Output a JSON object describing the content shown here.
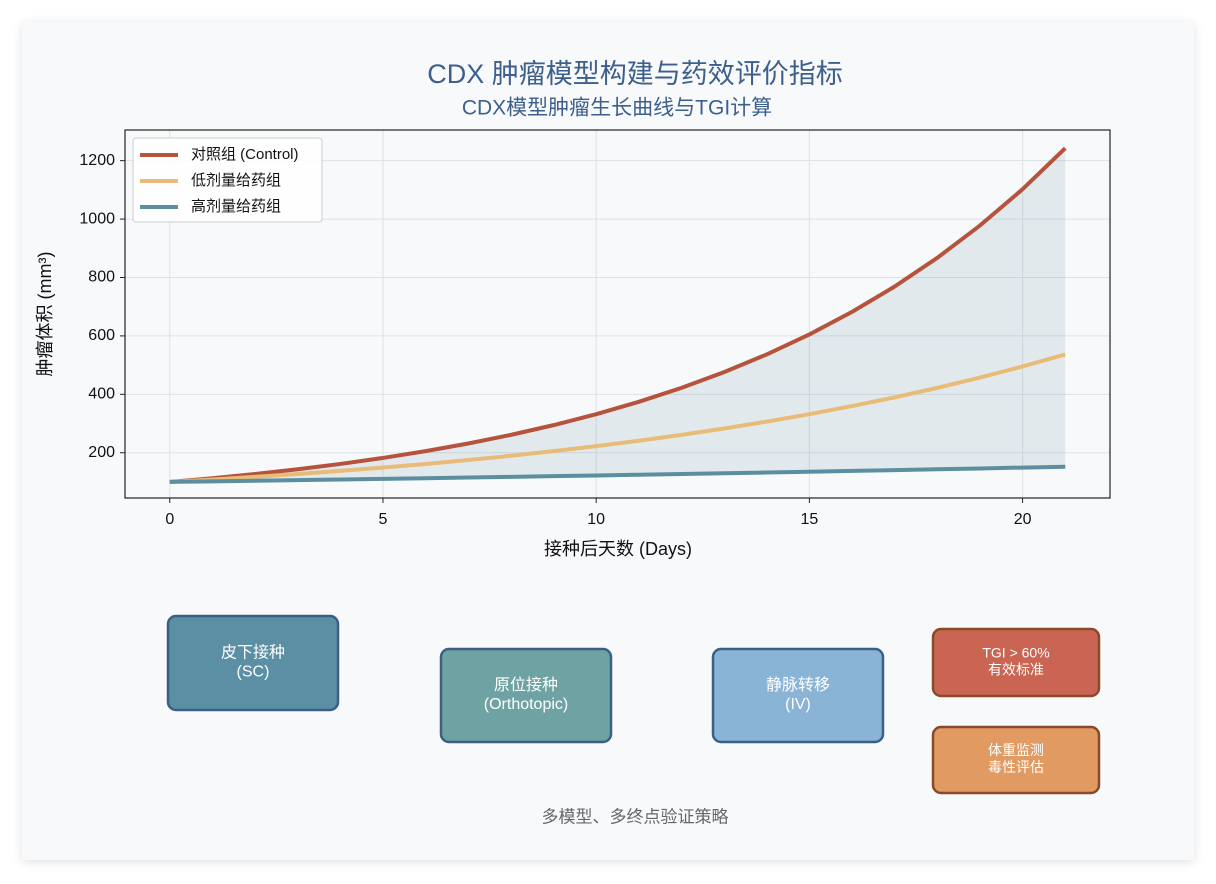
{
  "chart_data": {
    "type": "line",
    "title": "CDX 肿瘤模型构建与药效评价指标",
    "subtitle": "CDX模型肿瘤生长曲线与TGI计算",
    "x_label": "接种后天数 (Days)",
    "y_label": "肿瘤体积 (mm³)",
    "x": [
      0,
      1,
      2,
      3,
      4,
      5,
      6,
      7,
      8,
      9,
      10,
      11,
      12,
      13,
      14,
      15,
      16,
      17,
      18,
      19,
      20,
      21
    ],
    "series": [
      {
        "name": "对照组 (Control)",
        "color": "#b5533c",
        "values": [
          100,
          112.7,
          127.1,
          143.3,
          161.6,
          182.2,
          205.4,
          231.6,
          261.1,
          294.5,
          332.0,
          374.3,
          422.1,
          475.9,
          536.6,
          605.0,
          682.2,
          769.2,
          867.3,
          977.9,
          1102.3,
          1242.9
        ]
      },
      {
        "name": "低剂量给药组",
        "color": "#e8bb78",
        "values": [
          100,
          108.3,
          117.4,
          127.1,
          137.7,
          149.2,
          161.6,
          175.1,
          189.6,
          205.4,
          222.6,
          241.1,
          261.2,
          283.0,
          306.6,
          332.0,
          359.7,
          389.6,
          422.1,
          457.3,
          495.3,
          536.6
        ]
      },
      {
        "name": "高剂量给药组",
        "color": "#5b8fa0",
        "values": [
          100,
          102.0,
          104.1,
          106.2,
          108.3,
          110.5,
          112.7,
          115.0,
          117.4,
          119.7,
          122.1,
          124.6,
          127.1,
          129.7,
          132.3,
          135.0,
          137.7,
          140.5,
          143.3,
          146.2,
          149.2,
          152.2
        ]
      }
    ],
    "fill_between_color": "#5b8a9b",
    "xlim": [
      -1.05,
      22.05
    ],
    "ylim": [
      45,
      1305
    ],
    "xticks": [
      0,
      5,
      10,
      15,
      20
    ],
    "yticks": [
      200,
      400,
      600,
      800,
      1000,
      1200
    ],
    "grid": true,
    "legend": "upper-left"
  },
  "diagram": {
    "nodes": [
      {
        "lines": [
          "皮下接种",
          "(SC)"
        ],
        "color": "#5b8fa3",
        "border": "#3b5f86"
      },
      {
        "lines": [
          "原位接种",
          "(Orthotopic)"
        ],
        "color": "#6fa3a3",
        "border": "#3b5f86"
      },
      {
        "lines": [
          "静脉转移",
          "(IV)"
        ],
        "color": "#8ab4d6",
        "border": "#3b5f86"
      },
      {
        "lines": [
          "TGI > 60%",
          "有效标准"
        ],
        "color": "#c96552",
        "border": "#8a4a2a"
      },
      {
        "lines": [
          "体重监测",
          "毒性评估"
        ],
        "color": "#e09a62",
        "border": "#8a4a2a"
      }
    ],
    "caption": "多模型、多终点验证策略"
  }
}
